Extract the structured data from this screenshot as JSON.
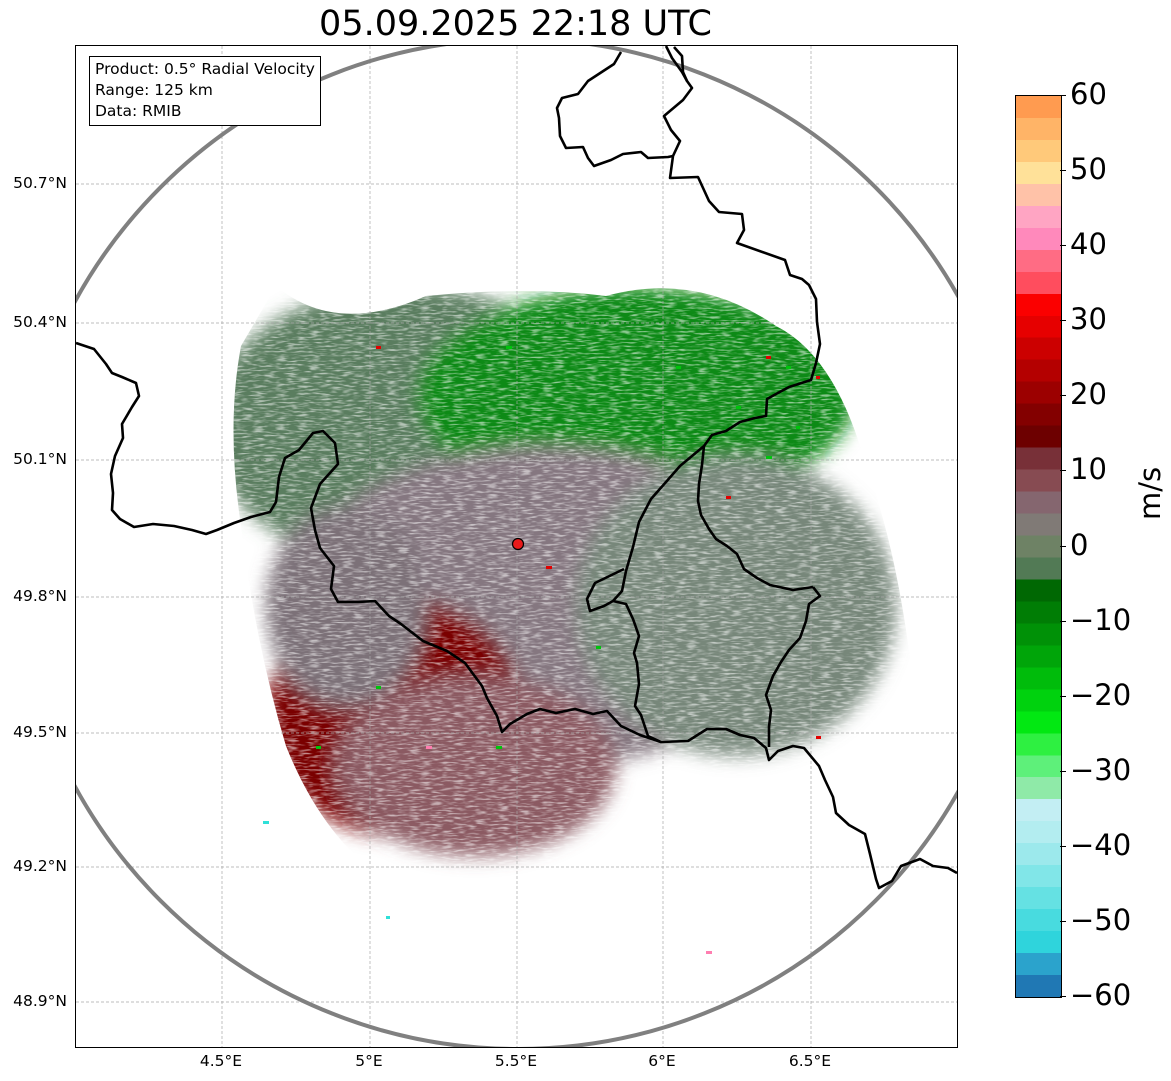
{
  "title": "05.09.2025 22:18 UTC",
  "info_box": {
    "product": "Product: 0.5° Radial Velocity",
    "range": "Range: 125 km",
    "data": "Data: RMIB"
  },
  "chart_data": {
    "type": "heatmap",
    "title": "05.09.2025 22:18 UTC",
    "lat_ticks": [
      "50.7°N",
      "50.4°N",
      "50.1°N",
      "49.8°N",
      "49.5°N",
      "49.2°N",
      "48.9°N"
    ],
    "lon_ticks": [
      "4.5°E",
      "5°E",
      "5.5°E",
      "6°E",
      "6.5°E"
    ],
    "lat_values": [
      50.7,
      50.4,
      50.1,
      49.8,
      49.5,
      49.2,
      48.9
    ],
    "lon_values": [
      4.5,
      5.0,
      5.5,
      6.0,
      6.5
    ],
    "lon_range": [
      4.0,
      7.0
    ],
    "lat_range": [
      48.8,
      50.98
    ],
    "radar_site": {
      "lon": 5.505,
      "lat": 49.915
    },
    "range_km": 125,
    "grid": true,
    "colorbar": {
      "label": "m/s",
      "range": [
        -60,
        60
      ],
      "ticks": [
        "60",
        "50",
        "40",
        "30",
        "20",
        "10",
        "0",
        "−10",
        "−20",
        "−30",
        "−40",
        "−50",
        "−60"
      ],
      "tick_values": [
        60,
        50,
        40,
        30,
        20,
        10,
        0,
        -10,
        -20,
        -30,
        -40,
        -50,
        -60
      ],
      "colors": [
        "#2078b4",
        "#2ba3cc",
        "#2fd4dc",
        "#48dbdf",
        "#65e1e3",
        "#81e6e8",
        "#9ce9ec",
        "#b3edf0",
        "#c3eef3",
        "#8feaa8",
        "#5ef07a",
        "#2ef041",
        "#02e812",
        "#00d20e",
        "#00bc0b",
        "#00a509",
        "#009107",
        "#007d05",
        "#006803",
        "#527a55",
        "#6e8265",
        "#807a76",
        "#85666f",
        "#874b52",
        "#783038",
        "#6d0000",
        "#830000",
        "#9c0000",
        "#b40000",
        "#cc0000",
        "#e60000",
        "#fb0000",
        "#ff4d5e",
        "#ff6c84",
        "#ff89bb",
        "#ffa5c3",
        "#ffc2a8",
        "#ffe199",
        "#ffc97a",
        "#ffb467",
        "#ff9b50"
      ]
    }
  }
}
